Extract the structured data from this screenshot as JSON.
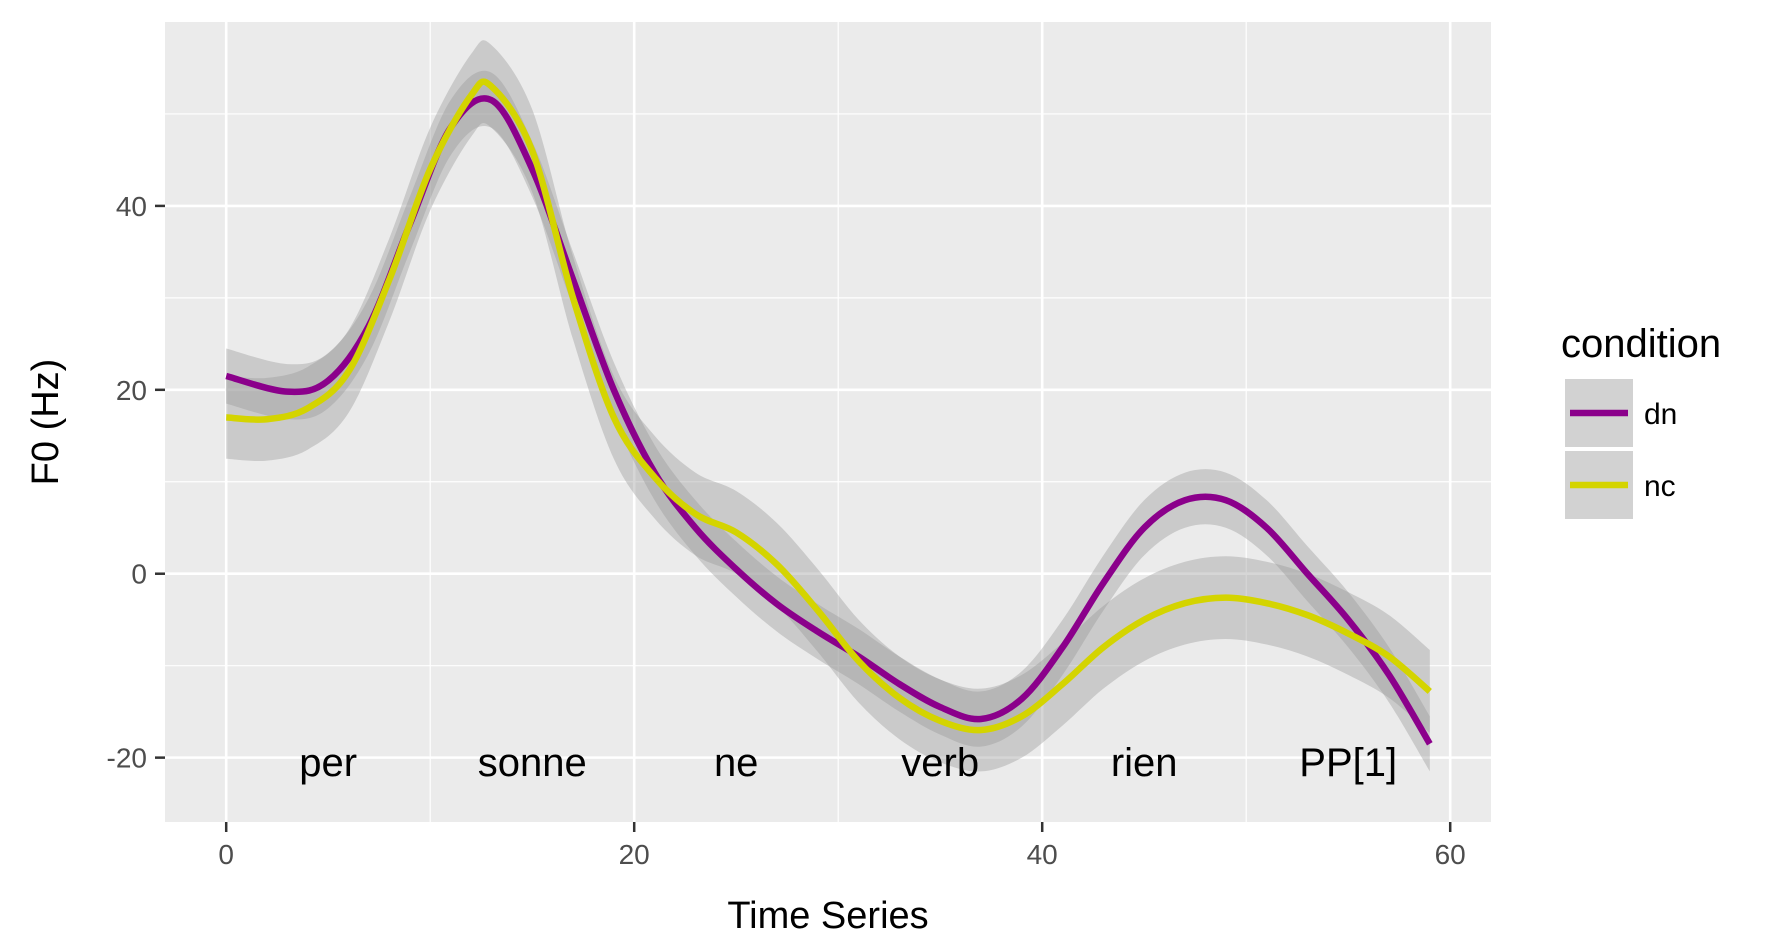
{
  "chart_data": {
    "type": "line",
    "title": "",
    "xlabel": "Time Series",
    "ylabel": "F0 (Hz)",
    "xlim": [
      -3,
      62
    ],
    "ylim": [
      -27,
      60
    ],
    "x_ticks": [
      0,
      20,
      40,
      60
    ],
    "y_ticks": [
      -20,
      0,
      20,
      40
    ],
    "grid": true,
    "legend": {
      "title": "condition",
      "position": "right"
    },
    "annotations": [
      {
        "text": "per",
        "x": 5,
        "y": -20.5
      },
      {
        "text": "sonne",
        "x": 15,
        "y": -20.5
      },
      {
        "text": "ne",
        "x": 25,
        "y": -20.5
      },
      {
        "text": "verb",
        "x": 35,
        "y": -20.5
      },
      {
        "text": "rien",
        "x": 45,
        "y": -20.5
      },
      {
        "text": "PP[1]",
        "x": 55,
        "y": -20.5
      }
    ],
    "series": [
      {
        "name": "dn",
        "color": "#8b008b",
        "band": 3,
        "points": [
          [
            0,
            21.5
          ],
          [
            3,
            19.8
          ],
          [
            5,
            21
          ],
          [
            7,
            27
          ],
          [
            9,
            38
          ],
          [
            11,
            48.5
          ],
          [
            13,
            51.5
          ],
          [
            15,
            44
          ],
          [
            17,
            32
          ],
          [
            19,
            20
          ],
          [
            21,
            11
          ],
          [
            23,
            5
          ],
          [
            25,
            0.5
          ],
          [
            27,
            -3.3
          ],
          [
            29,
            -6.3
          ],
          [
            31,
            -9
          ],
          [
            33,
            -12
          ],
          [
            35,
            -14.5
          ],
          [
            37,
            -15.8
          ],
          [
            39,
            -13.6
          ],
          [
            41,
            -8
          ],
          [
            43,
            -1
          ],
          [
            45,
            5
          ],
          [
            47,
            8
          ],
          [
            49,
            8
          ],
          [
            51,
            5
          ],
          [
            53,
            0
          ],
          [
            55,
            -5
          ],
          [
            57,
            -11
          ],
          [
            59,
            -18.5
          ]
        ]
      },
      {
        "name": "nc",
        "color": "#d4d400",
        "band": 4.5,
        "points": [
          [
            0,
            17
          ],
          [
            2,
            16.8
          ],
          [
            4,
            18
          ],
          [
            6,
            22
          ],
          [
            8,
            32
          ],
          [
            10,
            44
          ],
          [
            12,
            52
          ],
          [
            13,
            53
          ],
          [
            15,
            46
          ],
          [
            17,
            30
          ],
          [
            19,
            17
          ],
          [
            21,
            10.5
          ],
          [
            23,
            6.5
          ],
          [
            25,
            4.5
          ],
          [
            27,
            1
          ],
          [
            29,
            -4
          ],
          [
            31,
            -9.5
          ],
          [
            33,
            -13.5
          ],
          [
            35,
            -16
          ],
          [
            37,
            -17
          ],
          [
            39,
            -15.5
          ],
          [
            41,
            -12
          ],
          [
            43,
            -8
          ],
          [
            45,
            -5
          ],
          [
            47,
            -3.2
          ],
          [
            49,
            -2.6
          ],
          [
            51,
            -3.2
          ],
          [
            53,
            -4.5
          ],
          [
            55,
            -6.5
          ],
          [
            57,
            -9
          ],
          [
            59,
            -12.8
          ]
        ]
      }
    ]
  }
}
